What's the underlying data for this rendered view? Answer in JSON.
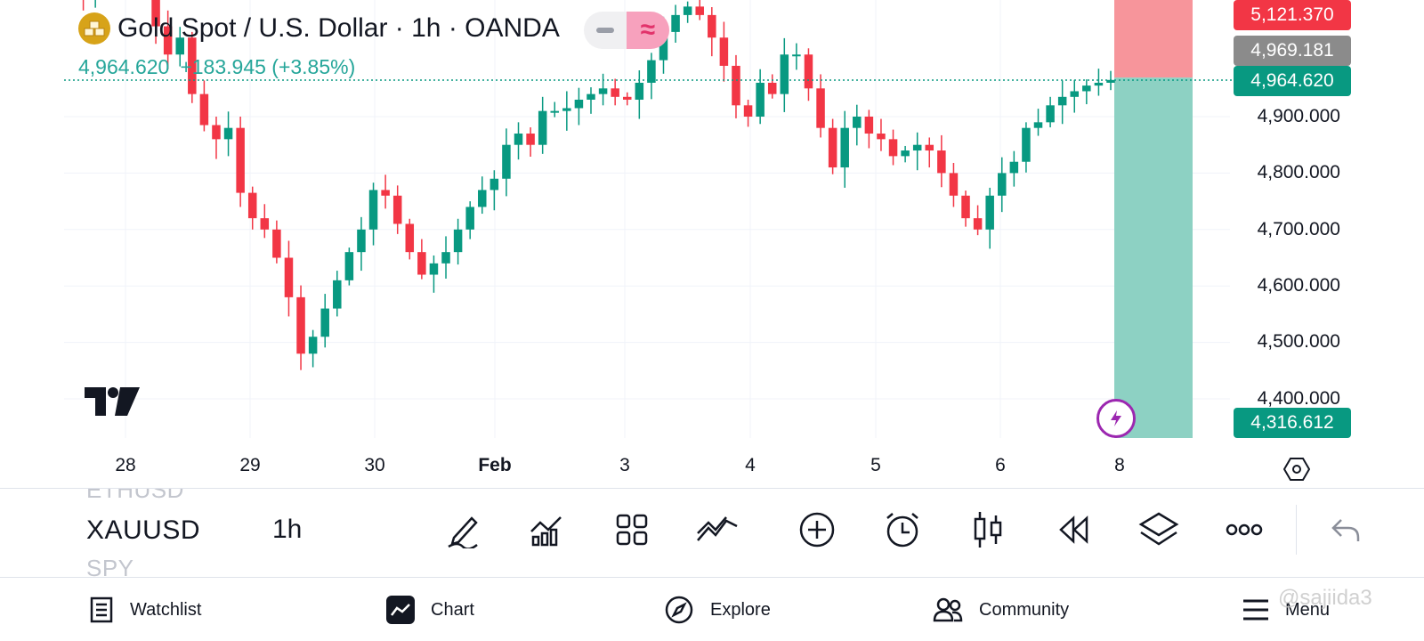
{
  "legend": {
    "title": "Gold Spot / U.S. Dollar · 1h · OANDA",
    "logo_icon": "gold-bars-icon",
    "price": "4,964.620",
    "change": "+183.945 (+3.85%)",
    "collapse_icon": "minus-icon",
    "indicator_icon": "approx-wave-icon"
  },
  "price_axis": {
    "labels": [
      "4,900.000",
      "4,800.000",
      "4,700.000",
      "4,600.000",
      "4,500.000",
      "4,400.000"
    ],
    "tags": {
      "target": "5,121.370",
      "entry": "4,969.181",
      "last": "4,964.620",
      "stop": "4,316.612"
    }
  },
  "time_axis": {
    "labels": [
      "28",
      "29",
      "30",
      "Feb",
      "3",
      "4",
      "5",
      "6",
      "8"
    ]
  },
  "colors": {
    "up": "#089981",
    "down": "#f23645",
    "target_zone": "#f7959b",
    "stop_zone": "#8dd1c3",
    "grid": "#f0f3fa"
  },
  "toolbar": {
    "symbols": [
      "ETHUSD",
      "XAUUSD",
      "SPY"
    ],
    "interval": "1h",
    "tools": [
      "pencil-icon",
      "indicators-icon",
      "grid-icon",
      "trend-line-icon",
      "add-circle-icon",
      "alarm-icon",
      "candles-icon",
      "replay-icon",
      "layers-icon",
      "more-icon",
      "undo-icon"
    ]
  },
  "nav": {
    "watchlist": "Watchlist",
    "chart": "Chart",
    "explore": "Explore",
    "community": "Community",
    "menu": "Menu"
  },
  "watermark": "@sajiida3",
  "chart_data": {
    "type": "candlestick",
    "title": "Gold Spot / U.S. Dollar · 1h · OANDA",
    "x_ticks": [
      "28",
      "29",
      "30",
      "Feb",
      "3",
      "4",
      "5",
      "6",
      "8"
    ],
    "y_ticks": [
      4400,
      4500,
      4600,
      4700,
      4800,
      4900
    ],
    "ylim": [
      4316,
      5160
    ],
    "last_price": 4964.62,
    "position": {
      "target": 5121.37,
      "entry": 4969.181,
      "stop": 4316.612
    },
    "grid": true,
    "closes": [
      5125,
      5120,
      5135,
      5140,
      5150,
      5155,
      5160,
      5060,
      5010,
      5040,
      4940,
      4885,
      4860,
      4880,
      4765,
      4720,
      4700,
      4650,
      4580,
      4480,
      4510,
      4560,
      4610,
      4660,
      4700,
      4770,
      4760,
      4710,
      4660,
      4620,
      4640,
      4660,
      4700,
      4740,
      4770,
      4790,
      4850,
      4870,
      4850,
      4910,
      4910,
      4915,
      4930,
      4940,
      4950,
      4935,
      4930,
      4960,
      5000,
      5050,
      5080,
      5095,
      5080,
      5040,
      4990,
      4920,
      4900,
      4960,
      4940,
      5010,
      5010,
      4950,
      4880,
      4810,
      4880,
      4900,
      4870,
      4860,
      4830,
      4840,
      4850,
      4840,
      4800,
      4760,
      4720,
      4700,
      4760,
      4800,
      4820,
      4880,
      4890,
      4920,
      4935,
      4945,
      4955,
      4960,
      4965
    ]
  }
}
